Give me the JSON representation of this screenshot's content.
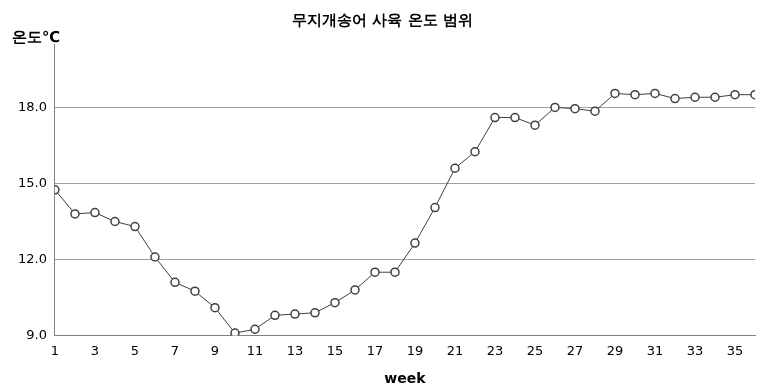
{
  "chart_data": {
    "type": "line",
    "title": "무지개송어 사육 온도 범위",
    "y_label": "온도℃",
    "x_label": "week",
    "categories": [
      1,
      null,
      3,
      null,
      5,
      null,
      7,
      null,
      9,
      null,
      11,
      null,
      13,
      null,
      15,
      null,
      17,
      null,
      19,
      null,
      21,
      null,
      23,
      null,
      25,
      null,
      27,
      null,
      29,
      null,
      31,
      null,
      33,
      null,
      35,
      null
    ],
    "values": [
      14.75,
      13.8,
      13.85,
      13.5,
      13.3,
      12.1,
      11.1,
      10.75,
      10.1,
      9.1,
      9.25,
      9.8,
      9.85,
      9.9,
      10.3,
      10.8,
      11.5,
      11.5,
      12.65,
      14.05,
      15.6,
      16.25,
      17.6,
      17.6,
      17.3,
      18.0,
      17.95,
      17.85,
      18.55,
      18.5,
      18.55,
      18.35,
      18.4,
      18.4,
      18.5,
      18.5
    ],
    "color": "#404040",
    "marker": "circle",
    "line_style": "solid",
    "ylim": [
      9,
      20.5
    ],
    "yticks": [
      {
        "value": 9,
        "label": "9.0"
      },
      {
        "value": 12,
        "label": "12.0"
      },
      {
        "value": 15,
        "label": "15.0"
      },
      {
        "value": 18,
        "label": "18.0"
      }
    ],
    "grid": true
  }
}
